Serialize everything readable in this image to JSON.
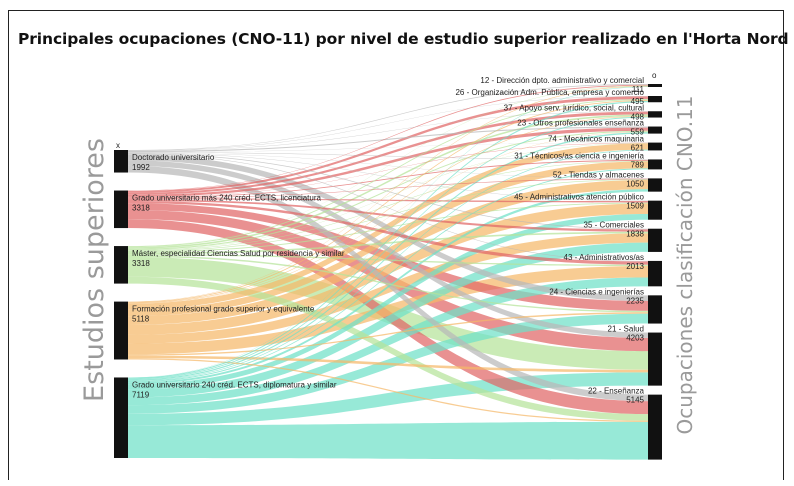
{
  "title": "Principales ocupaciones (CNO-11) por nivel de estudio superior realizado en l'Horta Nord",
  "left_axis_title": "Estudios superiores",
  "right_axis_title": "Ocupaciones clasificación CNO.11",
  "left_marker": "x",
  "right_marker": "o",
  "chart_data": {
    "type": "sankey",
    "sources": [
      {
        "label": "Doctorado universitario",
        "value": 1992,
        "color": "#b8b8b8"
      },
      {
        "label": "Grado universitario más 240 créd. ECTS, licenciatura",
        "value": 3318,
        "color": "#e06666"
      },
      {
        "label": "Máster, especialidad Ciencias Salud por residencia y similar",
        "value": 3318,
        "color": "#b6e39a"
      },
      {
        "label": "Formación profesional grado superior y equivalente",
        "value": 5118,
        "color": "#f5b969"
      },
      {
        "label": "Grado universitario 240 créd. ECTS, diplomatura y similar",
        "value": 7119,
        "color": "#6fe0c8"
      }
    ],
    "targets": [
      {
        "label": "12 - Dirección dpto. administrativo y comercial",
        "value": 111
      },
      {
        "label": "26 - Organización Adm. Pública, empresa y comercio",
        "value": 495
      },
      {
        "label": "37 - Apoyo serv. jurídico, social, cultural",
        "value": 498
      },
      {
        "label": "23 - Otros profesionales enseñanza",
        "value": 559
      },
      {
        "label": "74 - Mecánicos maquinaria",
        "value": 621
      },
      {
        "label": "31 - Técnicos/as ciencia e ingeniería",
        "value": 789
      },
      {
        "label": "52 - Tiendas y almacenes",
        "value": 1050
      },
      {
        "label": "45 - Administrativos atención público",
        "value": 1509
      },
      {
        "label": "35 - Comerciales",
        "value": 1838
      },
      {
        "label": "43 - Administrativos/as",
        "value": 2013
      },
      {
        "label": "24 - Ciencias e ingenierías",
        "value": 2235
      },
      {
        "label": "21 - Salud",
        "value": 4203
      },
      {
        "label": "22 - Enseñanza",
        "value": 5145
      }
    ]
  }
}
